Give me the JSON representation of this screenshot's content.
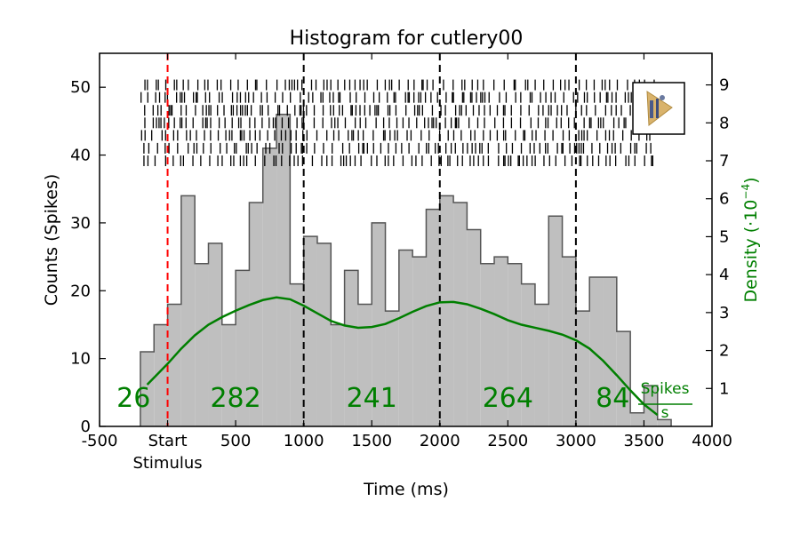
{
  "chart_data": {
    "type": "bar",
    "title": "Histogram for cutlery00",
    "xlabel": "Time (ms)",
    "ylabel": "Counts (Spikes)",
    "y2label_main": "Density (·10",
    "y2label_exp": "−4",
    "y2label_close": ")",
    "xlim": [
      -500,
      4000
    ],
    "ylim": [
      0,
      55
    ],
    "y2lim": [
      0,
      9.833
    ],
    "x_ticks": [
      {
        "value": -500,
        "label": "-500"
      },
      {
        "value": 0,
        "label": "Start"
      },
      {
        "value": 500,
        "label": "500"
      },
      {
        "value": 1000,
        "label": "1000"
      },
      {
        "value": 1500,
        "label": "1500"
      },
      {
        "value": 2000,
        "label": "2000"
      },
      {
        "value": 2500,
        "label": "2500"
      },
      {
        "value": 3000,
        "label": "3000"
      },
      {
        "value": 3500,
        "label": "3500"
      },
      {
        "value": 4000,
        "label": "4000"
      }
    ],
    "start_sublabel": "Stimulus",
    "y_ticks": [
      0,
      10,
      20,
      30,
      40,
      50
    ],
    "y2_ticks": [
      1,
      2,
      3,
      4,
      5,
      6,
      7,
      8,
      9
    ],
    "histogram": {
      "bin_start": -200,
      "bin_width": 100,
      "counts": [
        11,
        15,
        18,
        34,
        24,
        27,
        15,
        23,
        33,
        41,
        46,
        21,
        28,
        27,
        15,
        23,
        18,
        30,
        17,
        26,
        25,
        32,
        34,
        33,
        29,
        24,
        25,
        24,
        21,
        18,
        31,
        25,
        17,
        22,
        22,
        14,
        2,
        6,
        1
      ]
    },
    "density": {
      "x": [
        -150,
        0,
        100,
        200,
        300,
        400,
        500,
        600,
        700,
        800,
        900,
        1000,
        1100,
        1200,
        1300,
        1400,
        1500,
        1600,
        1700,
        1800,
        1900,
        2000,
        2100,
        2200,
        2300,
        2400,
        2500,
        2600,
        2700,
        2800,
        2900,
        3000,
        3100,
        3200,
        3300,
        3400,
        3500,
        3600
      ],
      "y": [
        1.1,
        1.65,
        2.05,
        2.4,
        2.68,
        2.88,
        3.05,
        3.2,
        3.33,
        3.4,
        3.35,
        3.18,
        2.98,
        2.78,
        2.66,
        2.6,
        2.62,
        2.7,
        2.85,
        3.02,
        3.17,
        3.27,
        3.28,
        3.22,
        3.1,
        2.96,
        2.8,
        2.68,
        2.6,
        2.52,
        2.42,
        2.27,
        2.05,
        1.73,
        1.35,
        0.95,
        0.58,
        0.3
      ]
    },
    "density_color": "#007f00",
    "hist_fill": "#bfbfbf",
    "hist_edge": "#555555",
    "stimulus_line_color": "#ff0000",
    "stimulus_x": 0,
    "boundaries": [
      1000,
      2000,
      3000
    ],
    "segment_counts": [
      {
        "x": -250,
        "label": "26"
      },
      {
        "x": 500,
        "label": "282"
      },
      {
        "x": 1500,
        "label": "241"
      },
      {
        "x": 2500,
        "label": "264"
      },
      {
        "x": 3270,
        "label": "84"
      }
    ],
    "unit_label": {
      "numerator": "Spikes",
      "denominator": "s"
    },
    "raster": {
      "trial_levels": [
        7,
        7.33,
        7.67,
        8,
        8.33,
        8.67,
        9
      ],
      "x_range": [
        -200,
        3600
      ]
    },
    "grid": false,
    "legend": "none"
  }
}
